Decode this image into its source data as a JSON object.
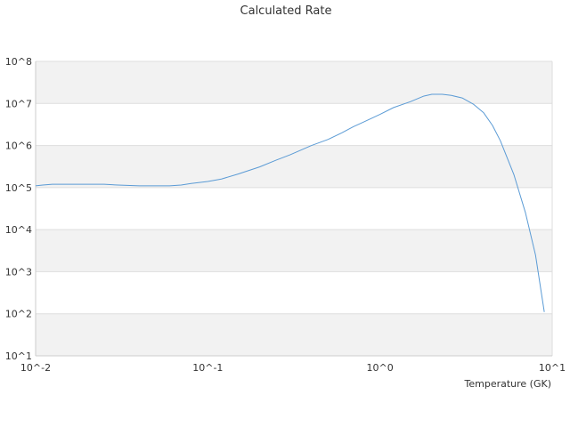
{
  "chart_data": {
    "type": "line",
    "title": "Calculated Rate",
    "xlabel": "Temperature (GK)",
    "ylabel": "",
    "x_scale": "log",
    "y_scale": "log",
    "xlim": [
      0.01,
      10
    ],
    "ylim": [
      10,
      100000000
    ],
    "x_ticks": [
      {
        "value": 0.01,
        "label": "10^-2"
      },
      {
        "value": 0.1,
        "label": "10^-1"
      },
      {
        "value": 1,
        "label": "10^0"
      },
      {
        "value": 10,
        "label": "10^1"
      }
    ],
    "y_ticks": [
      {
        "value": 10,
        "label": "10^1"
      },
      {
        "value": 100,
        "label": "10^2"
      },
      {
        "value": 1000,
        "label": "10^3"
      },
      {
        "value": 10000,
        "label": "10^4"
      },
      {
        "value": 100000,
        "label": "10^5"
      },
      {
        "value": 1000000,
        "label": "10^6"
      },
      {
        "value": 10000000,
        "label": "10^7"
      },
      {
        "value": 100000000,
        "label": "10^8"
      }
    ],
    "grid": true,
    "legend": "none",
    "colors": {
      "line": "#5b9bd5",
      "band": "#f2f2f2",
      "gridline": "#dddddd",
      "axis": "#cccccc"
    },
    "series": [
      {
        "x": [
          0.01,
          0.011,
          0.0125,
          0.015,
          0.02,
          0.025,
          0.03,
          0.04,
          0.05,
          0.06,
          0.07,
          0.08,
          0.1,
          0.12,
          0.15,
          0.2,
          0.25,
          0.3,
          0.4,
          0.5,
          0.6,
          0.7,
          0.8,
          1.0,
          1.2,
          1.5,
          1.8,
          2.0,
          2.3,
          2.6,
          3.0,
          3.5,
          4.0,
          4.5,
          5.0,
          6.0,
          7.0,
          8.0,
          9.0
        ],
        "values": [
          110000,
          115000,
          120000,
          120000,
          120000,
          120000,
          115000,
          110000,
          110000,
          110000,
          115000,
          125000,
          140000,
          160000,
          210000,
          310000,
          450000,
          600000,
          1000000,
          1400000,
          2000000,
          2800000,
          3600000,
          5500000,
          8000000,
          11000000,
          15000000,
          16500000,
          16500000,
          15500000,
          13500000,
          9500000,
          6000000,
          3000000,
          1300000,
          200000,
          25000,
          2500,
          110
        ]
      }
    ]
  }
}
